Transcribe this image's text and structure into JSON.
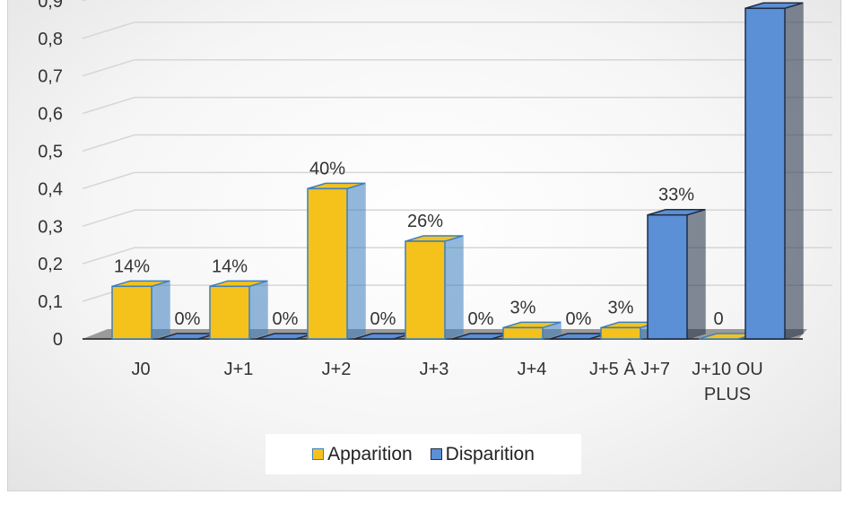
{
  "chart_data": {
    "type": "bar",
    "categories": [
      "J0",
      "J+1",
      "J+2",
      "J+3",
      "J+4",
      "J+5 À J+7",
      "J+10 OU PLUS"
    ],
    "series": [
      {
        "name": "Apparition",
        "values": [
          0.14,
          0.14,
          0.4,
          0.26,
          0.03,
          0.03,
          0
        ],
        "data_labels": [
          "14%",
          "14%",
          "40%",
          "26%",
          "3%",
          "3%",
          "0"
        ],
        "color": "#f5c21b",
        "edge_color": "#3c7fbf"
      },
      {
        "name": "Disparition",
        "values": [
          0,
          0,
          0,
          0,
          0,
          0.33,
          0.88
        ],
        "data_labels": [
          "0%",
          "0%",
          "0%",
          "0%",
          "0%",
          "33%",
          "88%"
        ],
        "color": "#5b8fd6",
        "edge_color": "#1f2d45"
      }
    ],
    "yticks": [
      "0",
      "0,1",
      "0,2",
      "0,3",
      "0,4",
      "0,5",
      "0,6",
      "0,7",
      "0,8",
      "0,9"
    ],
    "ylim": [
      0,
      0.9
    ],
    "grid": true,
    "style": "3d-column",
    "legend_position": "bottom"
  }
}
